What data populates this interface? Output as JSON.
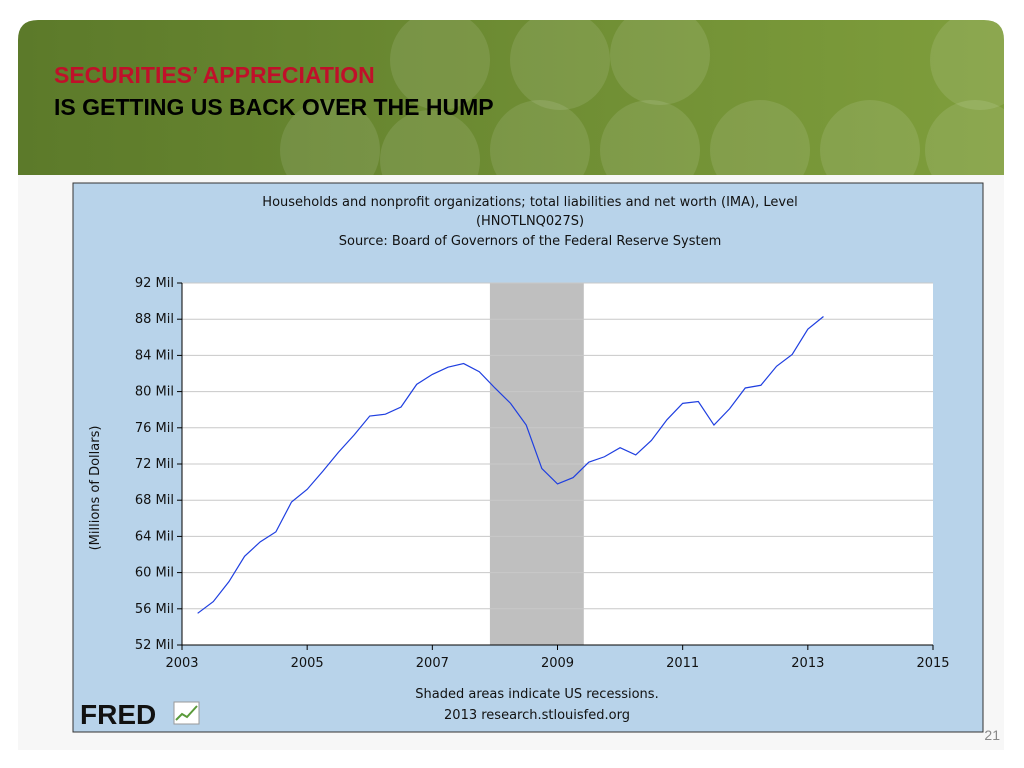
{
  "slide": {
    "title_line1": "SECURITIES’ APPRECIATION",
    "title_line2": "IS GETTING US BACK OVER THE HUMP",
    "page_number": "21"
  },
  "chart_data": {
    "type": "line",
    "title_lines": [
      "Households and nonprofit organizations; total liabilities and net worth (IMA), Level",
      "(HNOTLNQ027S)",
      "Source: Board of Governors of the Federal Reserve System"
    ],
    "ylabel": "(Millions of Dollars)",
    "footer_lines": [
      "Shaded areas indicate US recessions.",
      "2013 research.stlouisfed.org"
    ],
    "logo": "FRED",
    "x": [
      2003.25,
      2003.5,
      2003.75,
      2004.0,
      2004.25,
      2004.5,
      2004.75,
      2005.0,
      2005.25,
      2005.5,
      2005.75,
      2006.0,
      2006.25,
      2006.5,
      2006.75,
      2007.0,
      2007.25,
      2007.5,
      2007.75,
      2008.0,
      2008.25,
      2008.5,
      2008.75,
      2009.0,
      2009.25,
      2009.5,
      2009.75,
      2010.0,
      2010.25,
      2010.5,
      2010.75,
      2011.0,
      2011.25,
      2011.5,
      2011.75,
      2012.0,
      2012.25,
      2012.5,
      2012.75,
      2013.0,
      2013.25
    ],
    "series": [
      {
        "name": "HNOTLNQ027S",
        "color": "#1f3fe0",
        "values": [
          55.5,
          56.8,
          59.0,
          61.8,
          63.4,
          64.5,
          67.8,
          69.2,
          71.2,
          73.3,
          75.2,
          77.3,
          77.5,
          78.3,
          80.8,
          81.9,
          82.7,
          83.1,
          82.2,
          80.4,
          78.7,
          76.3,
          71.5,
          69.8,
          70.5,
          72.2,
          72.8,
          73.8,
          73.0,
          74.6,
          76.9,
          78.7,
          78.9,
          76.3,
          78.1,
          80.4,
          80.7,
          82.8,
          84.1,
          86.9,
          88.3
        ]
      }
    ],
    "recessions": [
      {
        "start": 2007.92,
        "end": 2009.42
      }
    ],
    "recession_color": "#bfbfbf",
    "xlim": [
      2003,
      2015
    ],
    "xticks": [
      2003,
      2005,
      2007,
      2009,
      2011,
      2013,
      2015
    ],
    "ylim": [
      52,
      92
    ],
    "yticks": [
      {
        "value": 52,
        "label": "52 Mil"
      },
      {
        "value": 56,
        "label": "56 Mil"
      },
      {
        "value": 60,
        "label": "60 Mil"
      },
      {
        "value": 64,
        "label": "64 Mil"
      },
      {
        "value": 68,
        "label": "68 Mil"
      },
      {
        "value": 72,
        "label": "72 Mil"
      },
      {
        "value": 76,
        "label": "76 Mil"
      },
      {
        "value": 80,
        "label": "80 Mil"
      },
      {
        "value": 84,
        "label": "84 Mil"
      },
      {
        "value": 88,
        "label": "88 Mil"
      },
      {
        "value": 92,
        "label": "92 Mil"
      }
    ],
    "grid": true
  }
}
